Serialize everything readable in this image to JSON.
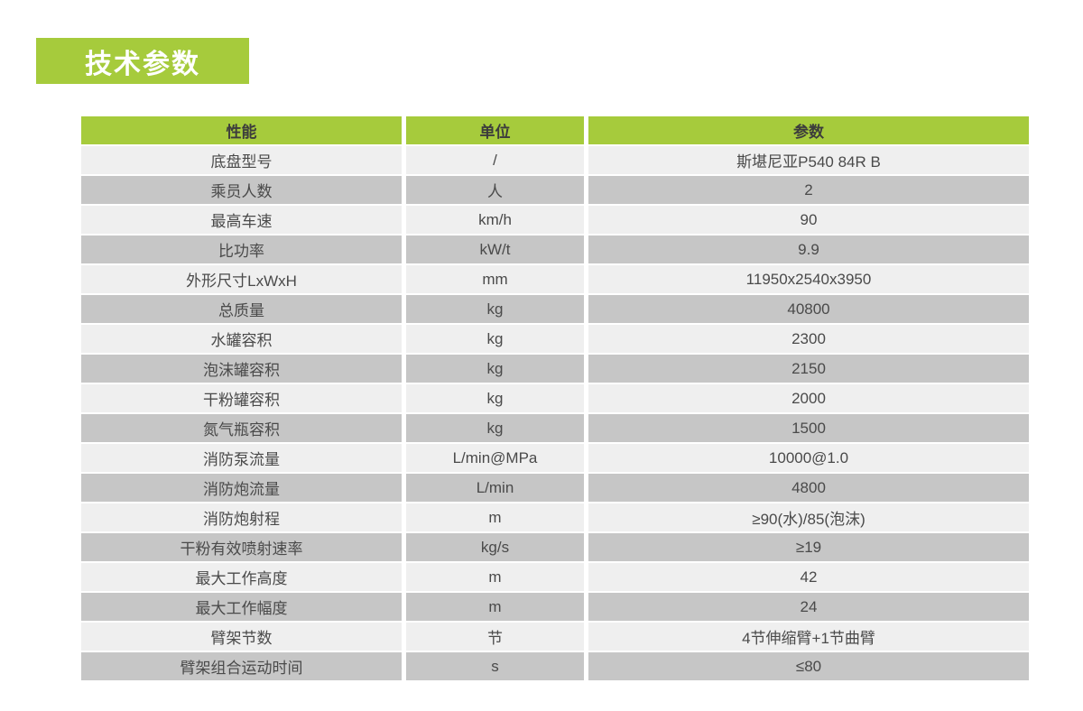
{
  "page_title": "技术参数",
  "colors": {
    "accent_green": "#a6cb3c",
    "row_light": "#efefef",
    "row_dark": "#c6c6c6",
    "header_text": "#3c3c3c",
    "body_text": "#4a4a4a",
    "title_text": "#ffffff"
  },
  "table": {
    "columns": [
      "性能",
      "单位",
      "参数"
    ],
    "rows": [
      {
        "property": "底盘型号",
        "unit": "/",
        "value": "斯堪尼亚P540 84R B"
      },
      {
        "property": "乘员人数",
        "unit": "人",
        "value": "2"
      },
      {
        "property": "最高车速",
        "unit": "km/h",
        "value": "90"
      },
      {
        "property": "比功率",
        "unit": "kW/t",
        "value": "9.9"
      },
      {
        "property": "外形尺寸LxWxH",
        "unit": "mm",
        "value": "11950x2540x3950"
      },
      {
        "property": "总质量",
        "unit": "kg",
        "value": "40800"
      },
      {
        "property": "水罐容积",
        "unit": "kg",
        "value": "2300"
      },
      {
        "property": "泡沫罐容积",
        "unit": "kg",
        "value": "2150"
      },
      {
        "property": "干粉罐容积",
        "unit": "kg",
        "value": "2000"
      },
      {
        "property": "氮气瓶容积",
        "unit": "kg",
        "value": "1500"
      },
      {
        "property": "消防泵流量",
        "unit": "L/min@MPa",
        "value": "10000@1.0"
      },
      {
        "property": "消防炮流量",
        "unit": "L/min",
        "value": "4800"
      },
      {
        "property": "消防炮射程",
        "unit": "m",
        "value": "≥90(水)/85(泡沫)"
      },
      {
        "property": "干粉有效喷射速率",
        "unit": "kg/s",
        "value": "≥19"
      },
      {
        "property": "最大工作高度",
        "unit": "m",
        "value": "42"
      },
      {
        "property": "最大工作幅度",
        "unit": "m",
        "value": "24"
      },
      {
        "property": "臂架节数",
        "unit": "节",
        "value": "4节伸缩臂+1节曲臂"
      },
      {
        "property": "臂架组合运动时间",
        "unit": "s",
        "value": "≤80"
      }
    ]
  }
}
